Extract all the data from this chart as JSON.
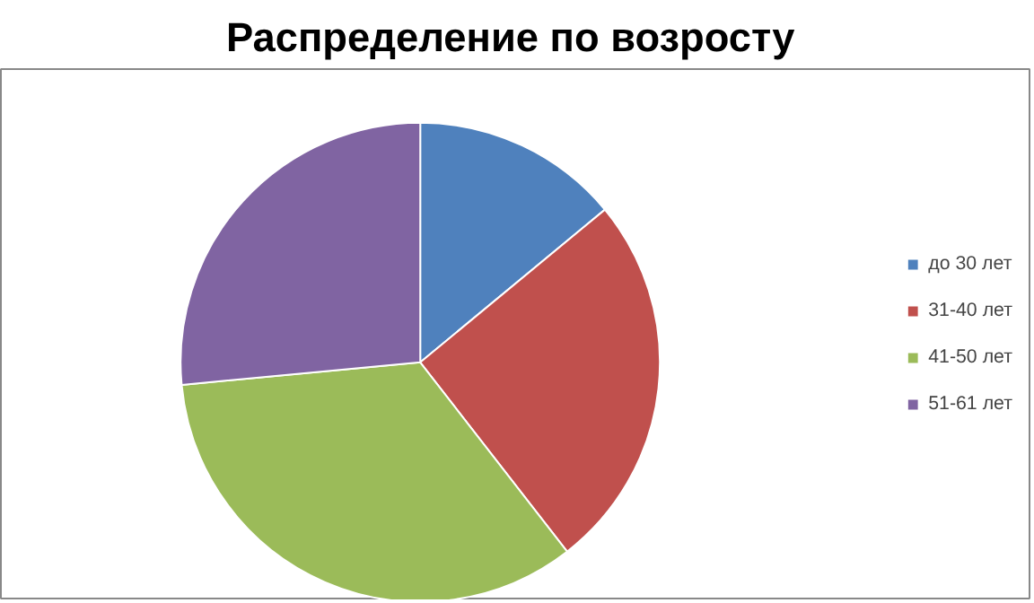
{
  "chart_data": {
    "type": "pie",
    "title": "Распределение  по возросту",
    "categories": [
      "до 30 лет",
      "31-40 лет",
      "41-50 лет",
      "51-61 лет"
    ],
    "values": [
      14,
      25.5,
      34,
      26.5
    ],
    "colors": [
      "#4f81bd",
      "#c0504d",
      "#9bbb59",
      "#8064a2"
    ],
    "legend": "right"
  }
}
